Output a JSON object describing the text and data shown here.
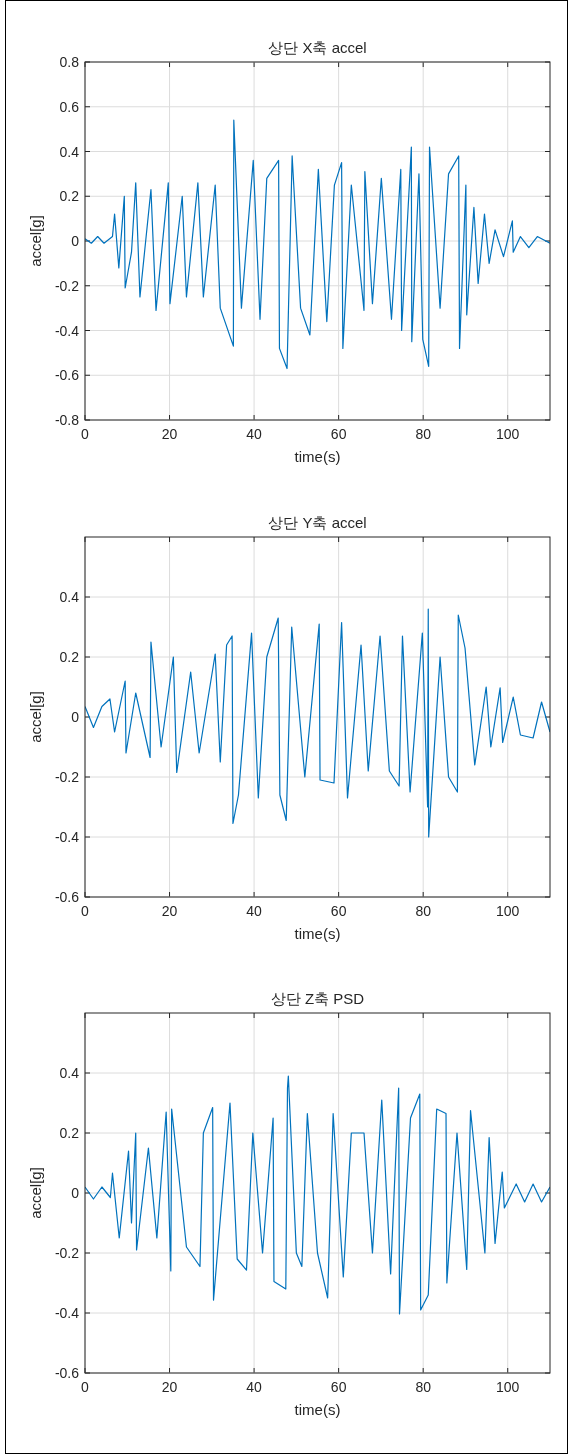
{
  "chart_data": [
    {
      "type": "line",
      "title": "상단 X축 accel",
      "xlabel": "time(s)",
      "ylabel": "accel[g]",
      "color": "#0072bd",
      "xlim": [
        0,
        110
      ],
      "xticks": [
        0,
        20,
        40,
        60,
        80,
        100
      ],
      "ylim": [
        -0.8,
        0.8
      ],
      "yticks": [
        -0.8,
        -0.6,
        -0.4,
        -0.2,
        0,
        0.2,
        0.4,
        0.6,
        0.8
      ],
      "grid": true,
      "x": [
        0,
        1.5,
        3,
        4.5,
        6.5,
        7,
        8,
        9.3,
        9.5,
        11,
        12,
        13,
        15.6,
        16.8,
        19.7,
        20.1,
        23,
        24,
        26.7,
        28,
        30.8,
        32,
        35.1,
        35.2,
        37,
        39.8,
        41.4,
        43,
        45.8,
        46,
        47.8,
        49,
        51,
        53.2,
        55.2,
        57.2,
        59,
        60.7,
        61,
        63,
        66,
        66.2,
        68,
        70.1,
        72.5,
        74.7,
        74.9,
        77.2,
        77.3,
        79,
        79.9,
        81.3,
        81.5,
        84,
        86,
        88.4,
        88.6,
        90.1,
        90.3,
        92,
        93,
        94.5,
        95.6,
        97,
        99,
        101.1,
        101.3,
        103,
        105,
        107,
        110
      ],
      "values": [
        0.01,
        -0.01,
        0.02,
        -0.01,
        0.02,
        0.12,
        -0.12,
        0.2,
        -0.21,
        -0.05,
        0.26,
        -0.25,
        0.23,
        -0.31,
        0.26,
        -0.28,
        0.2,
        -0.25,
        0.26,
        -0.25,
        0.25,
        -0.3,
        -0.47,
        0.54,
        -0.3,
        0.36,
        -0.35,
        0.28,
        0.36,
        -0.48,
        -0.57,
        0.38,
        -0.3,
        -0.42,
        0.32,
        -0.36,
        0.25,
        0.35,
        -0.48,
        0.25,
        -0.31,
        0.31,
        -0.28,
        0.28,
        -0.35,
        0.32,
        -0.4,
        0.42,
        -0.45,
        0.3,
        -0.44,
        -0.56,
        0.42,
        -0.3,
        0.3,
        0.38,
        -0.48,
        0.25,
        -0.33,
        0.15,
        -0.19,
        0.12,
        -0.1,
        0.05,
        -0.07,
        0.09,
        -0.05,
        0.02,
        -0.03,
        0.02,
        -0.01
      ]
    },
    {
      "type": "line",
      "title": "상단 Y축 accel",
      "xlabel": "time(s)",
      "ylabel": "accel[g]",
      "color": "#0072bd",
      "xlim": [
        0,
        110
      ],
      "xticks": [
        0,
        20,
        40,
        60,
        80,
        100
      ],
      "ylim": [
        -0.6,
        0.6
      ],
      "yticks": [
        -0.6,
        -0.4,
        -0.2,
        0,
        0.2,
        0.4
      ],
      "grid": true,
      "x": [
        0,
        2,
        4,
        5.9,
        7,
        9.5,
        9.7,
        12,
        15.4,
        15.6,
        18,
        20.9,
        21.7,
        25,
        27,
        30.8,
        32,
        33.5,
        34.8,
        35,
        36.3,
        39.4,
        41,
        43,
        45.7,
        46.1,
        47.6,
        48.9,
        52,
        55.4,
        55.6,
        58.9,
        60.7,
        62.1,
        65.3,
        67,
        69.8,
        72,
        74.3,
        75.1,
        76.9,
        79.8,
        81.05,
        81.2,
        81.3,
        84,
        86,
        88.1,
        88.3,
        89.9,
        92.2,
        94.9,
        96,
        98.2,
        98.8,
        101.3,
        103,
        106,
        108,
        110
      ],
      "values": [
        0.035,
        -0.035,
        0.035,
        0.06,
        -0.05,
        0.12,
        -0.12,
        0.08,
        -0.135,
        0.25,
        -0.1,
        0.2,
        -0.185,
        0.15,
        -0.12,
        0.21,
        -0.15,
        0.24,
        0.27,
        -0.355,
        -0.26,
        0.28,
        -0.27,
        0.2,
        0.33,
        -0.26,
        -0.345,
        0.3,
        -0.2,
        0.31,
        -0.21,
        -0.22,
        0.315,
        -0.27,
        0.24,
        -0.18,
        0.27,
        -0.18,
        -0.23,
        0.27,
        -0.25,
        0.28,
        -0.3,
        0.36,
        -0.4,
        0.2,
        -0.2,
        -0.25,
        0.34,
        0.23,
        -0.16,
        0.1,
        -0.1,
        0.097,
        -0.085,
        0.066,
        -0.06,
        -0.07,
        0.05,
        -0.05
      ]
    },
    {
      "type": "line",
      "title": "상단 Z축 PSD",
      "xlabel": "time(s)",
      "ylabel": "accel[g]",
      "color": "#0072bd",
      "xlim": [
        0,
        110
      ],
      "xticks": [
        0,
        20,
        40,
        60,
        80,
        100
      ],
      "ylim": [
        -0.6,
        0.6
      ],
      "yticks": [
        -0.6,
        -0.4,
        -0.2,
        0,
        0.2,
        0.4
      ],
      "grid": true,
      "x": [
        0,
        2,
        4,
        6,
        6.5,
        8.1,
        10.3,
        11,
        12,
        12.2,
        15,
        17,
        19.2,
        20.3,
        20.5,
        24,
        27.2,
        28,
        30.2,
        30.4,
        34.3,
        36,
        38.2,
        39.7,
        42,
        44.5,
        44.7,
        47.5,
        47.9,
        48.1,
        50,
        51.3,
        52.6,
        55,
        57.4,
        58.7,
        61.1,
        63,
        66,
        68,
        70.2,
        72.3,
        74.2,
        74.4,
        77,
        79.2,
        79.4,
        81.2,
        83.2,
        85.4,
        85.6,
        88,
        90.3,
        91.2,
        94.6,
        95.6,
        97,
        98.7,
        99.2,
        102,
        104,
        106,
        108,
        110
      ],
      "values": [
        0.02,
        -0.02,
        0.02,
        -0.015,
        0.066,
        -0.15,
        0.14,
        -0.1,
        0.2,
        -0.19,
        0.15,
        -0.15,
        0.27,
        -0.26,
        0.28,
        -0.18,
        -0.245,
        0.2,
        0.285,
        -0.357,
        0.3,
        -0.22,
        -0.257,
        0.2,
        -0.2,
        0.25,
        -0.295,
        -0.32,
        0.35,
        0.39,
        -0.2,
        -0.245,
        0.265,
        -0.2,
        -0.35,
        0.265,
        -0.28,
        0.2,
        0.2,
        -0.2,
        0.31,
        -0.27,
        0.35,
        -0.403,
        0.25,
        0.33,
        -0.39,
        -0.34,
        0.28,
        0.265,
        -0.3,
        0.2,
        -0.255,
        0.275,
        -0.2,
        0.185,
        -0.168,
        0.07,
        -0.05,
        0.03,
        -0.03,
        0.03,
        -0.03,
        0.02
      ]
    }
  ]
}
